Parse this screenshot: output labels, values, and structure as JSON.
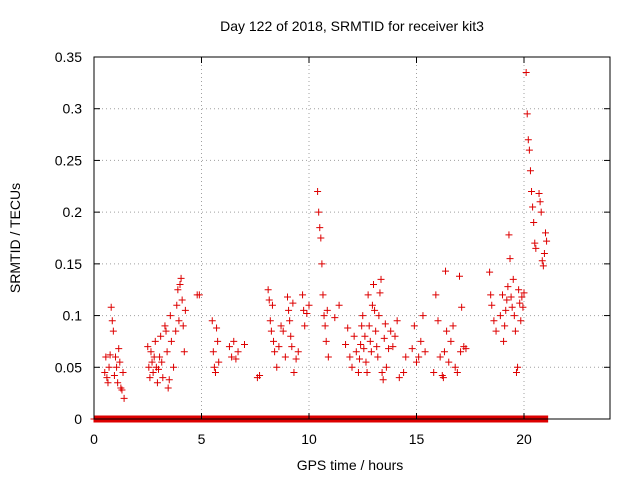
{
  "chart_data": {
    "type": "scatter",
    "title": "Day 122 of 2018, SRMTID for receiver kit3",
    "xlabel": "GPS time / hours",
    "ylabel": "SRMTID / TECUs",
    "xlim": [
      0,
      24
    ],
    "ylim": [
      0,
      0.35
    ],
    "xticks": [
      0,
      5,
      10,
      15,
      20
    ],
    "xtick_labels": [
      "0",
      "5",
      "10",
      "15",
      "20"
    ],
    "yticks": [
      0,
      0.05,
      0.1,
      0.15,
      0.2,
      0.25,
      0.3,
      0.35
    ],
    "ytick_labels": [
      "0",
      "0.05",
      "0.1",
      "0.15",
      "0.2",
      "0.25",
      "0.3",
      "0.35"
    ],
    "grid": true,
    "marker": "+",
    "color": "#dd0000",
    "baseline_x_range": [
      0,
      21.1
    ],
    "points": [
      [
        0.5,
        0.045
      ],
      [
        0.55,
        0.06
      ],
      [
        0.6,
        0.04
      ],
      [
        0.65,
        0.035
      ],
      [
        0.7,
        0.05
      ],
      [
        0.75,
        0.062
      ],
      [
        0.8,
        0.108
      ],
      [
        0.85,
        0.095
      ],
      [
        0.9,
        0.085
      ],
      [
        0.95,
        0.042
      ],
      [
        1.0,
        0.06
      ],
      [
        1.05,
        0.05
      ],
      [
        1.1,
        0.035
      ],
      [
        1.15,
        0.068
      ],
      [
        1.2,
        0.055
      ],
      [
        1.25,
        0.03
      ],
      [
        1.3,
        0.028
      ],
      [
        1.35,
        0.045
      ],
      [
        1.4,
        0.02
      ],
      [
        2.5,
        0.07
      ],
      [
        2.55,
        0.05
      ],
      [
        2.6,
        0.04
      ],
      [
        2.65,
        0.065
      ],
      [
        2.7,
        0.055
      ],
      [
        2.75,
        0.045
      ],
      [
        2.8,
        0.06
      ],
      [
        2.85,
        0.075
      ],
      [
        2.9,
        0.05
      ],
      [
        2.95,
        0.035
      ],
      [
        3.0,
        0.048
      ],
      [
        3.05,
        0.06
      ],
      [
        3.1,
        0.08
      ],
      [
        3.15,
        0.055
      ],
      [
        3.2,
        0.04
      ],
      [
        3.3,
        0.09
      ],
      [
        3.35,
        0.085
      ],
      [
        3.4,
        0.065
      ],
      [
        3.45,
        0.03
      ],
      [
        3.5,
        0.038
      ],
      [
        3.55,
        0.1
      ],
      [
        3.6,
        0.075
      ],
      [
        3.7,
        0.05
      ],
      [
        3.8,
        0.085
      ],
      [
        3.85,
        0.11
      ],
      [
        3.9,
        0.125
      ],
      [
        3.95,
        0.095
      ],
      [
        4.0,
        0.13
      ],
      [
        4.05,
        0.136
      ],
      [
        4.1,
        0.115
      ],
      [
        4.15,
        0.09
      ],
      [
        4.2,
        0.065
      ],
      [
        4.25,
        0.105
      ],
      [
        4.8,
        0.12
      ],
      [
        4.9,
        0.12
      ],
      [
        5.5,
        0.095
      ],
      [
        5.55,
        0.065
      ],
      [
        5.6,
        0.05
      ],
      [
        5.65,
        0.045
      ],
      [
        5.7,
        0.088
      ],
      [
        5.75,
        0.075
      ],
      [
        5.8,
        0.055
      ],
      [
        6.3,
        0.07
      ],
      [
        6.4,
        0.06
      ],
      [
        6.5,
        0.075
      ],
      [
        6.6,
        0.058
      ],
      [
        6.7,
        0.065
      ],
      [
        7.0,
        0.072
      ],
      [
        7.6,
        0.04
      ],
      [
        7.7,
        0.042
      ],
      [
        8.1,
        0.125
      ],
      [
        8.15,
        0.115
      ],
      [
        8.2,
        0.095
      ],
      [
        8.25,
        0.085
      ],
      [
        8.3,
        0.11
      ],
      [
        8.35,
        0.075
      ],
      [
        8.4,
        0.065
      ],
      [
        8.5,
        0.05
      ],
      [
        8.6,
        0.07
      ],
      [
        8.7,
        0.09
      ],
      [
        8.8,
        0.085
      ],
      [
        8.9,
        0.06
      ],
      [
        9.0,
        0.118
      ],
      [
        9.05,
        0.105
      ],
      [
        9.1,
        0.095
      ],
      [
        9.15,
        0.08
      ],
      [
        9.2,
        0.07
      ],
      [
        9.25,
        0.112
      ],
      [
        9.3,
        0.045
      ],
      [
        9.4,
        0.058
      ],
      [
        9.5,
        0.065
      ],
      [
        9.7,
        0.12
      ],
      [
        9.75,
        0.105
      ],
      [
        9.8,
        0.09
      ],
      [
        9.9,
        0.102
      ],
      [
        10.0,
        0.11
      ],
      [
        10.4,
        0.22
      ],
      [
        10.45,
        0.2
      ],
      [
        10.5,
        0.185
      ],
      [
        10.55,
        0.175
      ],
      [
        10.6,
        0.15
      ],
      [
        10.65,
        0.12
      ],
      [
        10.7,
        0.1
      ],
      [
        10.75,
        0.09
      ],
      [
        10.8,
        0.075
      ],
      [
        10.85,
        0.105
      ],
      [
        10.9,
        0.06
      ],
      [
        11.2,
        0.098
      ],
      [
        11.4,
        0.11
      ],
      [
        11.7,
        0.072
      ],
      [
        11.8,
        0.088
      ],
      [
        11.9,
        0.06
      ],
      [
        12.0,
        0.05
      ],
      [
        12.1,
        0.08
      ],
      [
        12.2,
        0.065
      ],
      [
        12.3,
        0.045
      ],
      [
        12.35,
        0.058
      ],
      [
        12.4,
        0.072
      ],
      [
        12.45,
        0.09
      ],
      [
        12.5,
        0.1
      ],
      [
        12.55,
        0.068
      ],
      [
        12.6,
        0.08
      ],
      [
        12.65,
        0.055
      ],
      [
        12.7,
        0.045
      ],
      [
        12.75,
        0.12
      ],
      [
        12.8,
        0.09
      ],
      [
        12.85,
        0.075
      ],
      [
        12.9,
        0.065
      ],
      [
        12.95,
        0.11
      ],
      [
        13.0,
        0.13
      ],
      [
        13.05,
        0.105
      ],
      [
        13.1,
        0.085
      ],
      [
        13.15,
        0.07
      ],
      [
        13.2,
        0.06
      ],
      [
        13.25,
        0.1
      ],
      [
        13.3,
        0.122
      ],
      [
        13.35,
        0.135
      ],
      [
        13.4,
        0.045
      ],
      [
        13.45,
        0.038
      ],
      [
        13.5,
        0.078
      ],
      [
        13.55,
        0.092
      ],
      [
        13.6,
        0.05
      ],
      [
        13.7,
        0.068
      ],
      [
        13.8,
        0.085
      ],
      [
        13.9,
        0.07
      ],
      [
        14.0,
        0.08
      ],
      [
        14.1,
        0.095
      ],
      [
        14.2,
        0.04
      ],
      [
        14.4,
        0.045
      ],
      [
        14.5,
        0.06
      ],
      [
        14.8,
        0.068
      ],
      [
        14.9,
        0.09
      ],
      [
        15.0,
        0.055
      ],
      [
        15.1,
        0.06
      ],
      [
        15.2,
        0.075
      ],
      [
        15.3,
        0.1
      ],
      [
        15.4,
        0.065
      ],
      [
        15.8,
        0.045
      ],
      [
        15.9,
        0.12
      ],
      [
        16.0,
        0.095
      ],
      [
        16.1,
        0.06
      ],
      [
        16.2,
        0.042
      ],
      [
        16.25,
        0.04
      ],
      [
        16.3,
        0.065
      ],
      [
        16.35,
        0.143
      ],
      [
        16.4,
        0.085
      ],
      [
        16.5,
        0.055
      ],
      [
        16.6,
        0.075
      ],
      [
        16.7,
        0.09
      ],
      [
        16.8,
        0.05
      ],
      [
        16.9,
        0.045
      ],
      [
        17.0,
        0.138
      ],
      [
        17.05,
        0.065
      ],
      [
        17.1,
        0.108
      ],
      [
        17.2,
        0.07
      ],
      [
        17.3,
        0.068
      ],
      [
        18.4,
        0.142
      ],
      [
        18.45,
        0.12
      ],
      [
        18.5,
        0.11
      ],
      [
        18.6,
        0.095
      ],
      [
        18.7,
        0.085
      ],
      [
        18.9,
        0.1
      ],
      [
        19.0,
        0.12
      ],
      [
        19.05,
        0.075
      ],
      [
        19.1,
        0.09
      ],
      [
        19.15,
        0.105
      ],
      [
        19.2,
        0.115
      ],
      [
        19.25,
        0.128
      ],
      [
        19.3,
        0.178
      ],
      [
        19.35,
        0.155
      ],
      [
        19.4,
        0.118
      ],
      [
        19.45,
        0.108
      ],
      [
        19.5,
        0.135
      ],
      [
        19.55,
        0.1
      ],
      [
        19.6,
        0.085
      ],
      [
        19.65,
        0.045
      ],
      [
        19.7,
        0.05
      ],
      [
        19.75,
        0.125
      ],
      [
        19.8,
        0.112
      ],
      [
        19.85,
        0.095
      ],
      [
        19.9,
        0.118
      ],
      [
        19.95,
        0.108
      ],
      [
        20.0,
        0.122
      ],
      [
        20.1,
        0.335
      ],
      [
        20.15,
        0.295
      ],
      [
        20.2,
        0.27
      ],
      [
        20.25,
        0.26
      ],
      [
        20.3,
        0.24
      ],
      [
        20.35,
        0.22
      ],
      [
        20.4,
        0.205
      ],
      [
        20.45,
        0.19
      ],
      [
        20.5,
        0.17
      ],
      [
        20.55,
        0.165
      ],
      [
        20.7,
        0.218
      ],
      [
        20.75,
        0.21
      ],
      [
        20.8,
        0.2
      ],
      [
        20.85,
        0.153
      ],
      [
        20.9,
        0.148
      ],
      [
        20.95,
        0.16
      ],
      [
        21.0,
        0.18
      ],
      [
        21.05,
        0.172
      ]
    ]
  }
}
